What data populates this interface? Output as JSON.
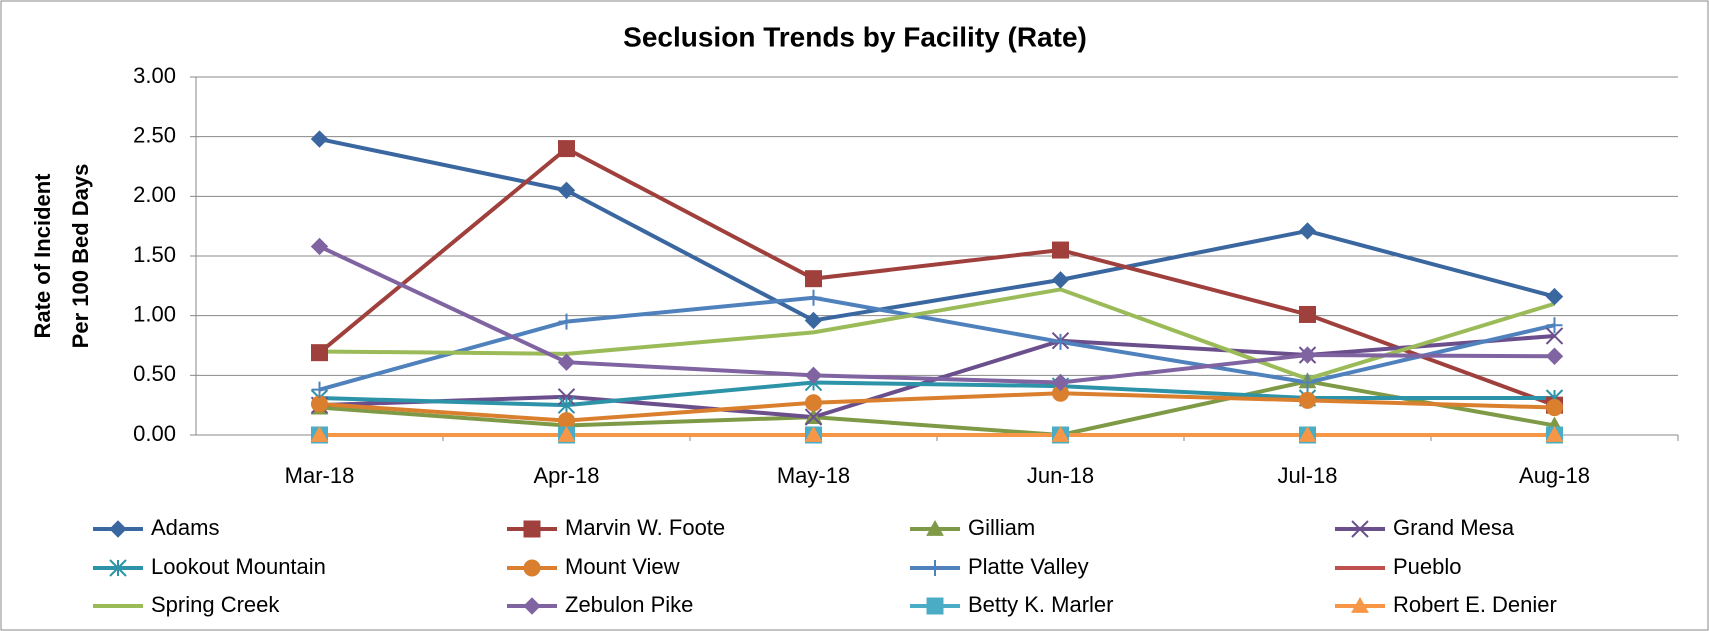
{
  "chart_data": {
    "type": "line",
    "title": "Seclusion Trends by Facility (Rate)",
    "y_label": [
      "Rate of Incident",
      "Per 100 Bed Days"
    ],
    "categories": [
      "Mar-18",
      "Apr-18",
      "May-18",
      "Jun-18",
      "Jul-18",
      "Aug-18"
    ],
    "ylim": [
      0,
      3
    ],
    "yticks": [
      {
        "value": 0,
        "label": "0.00"
      },
      {
        "value": 0.5,
        "label": "0.50"
      },
      {
        "value": 1,
        "label": "1.00"
      },
      {
        "value": 1.5,
        "label": "1.50"
      },
      {
        "value": 2,
        "label": "2.00"
      },
      {
        "value": 2.5,
        "label": "2.50"
      },
      {
        "value": 3,
        "label": "3.00"
      }
    ],
    "grid": true,
    "legend": "bottom",
    "series": [
      {
        "name": "Adams",
        "color": "#3a67a0",
        "marker": "diamond",
        "values": [
          2.48,
          2.05,
          0.96,
          1.3,
          1.71,
          1.16
        ]
      },
      {
        "name": "Marvin W. Foote",
        "color": "#a0403d",
        "marker": "square",
        "values": [
          0.69,
          2.4,
          1.31,
          1.55,
          1.01,
          0.25
        ]
      },
      {
        "name": "Gilliam",
        "color": "#7e9a47",
        "marker": "triangle",
        "values": [
          0.23,
          0.08,
          0.15,
          0,
          0.45,
          0.08
        ]
      },
      {
        "name": "Grand Mesa",
        "color": "#6b4e8c",
        "marker": "x",
        "values": [
          0.25,
          0.32,
          0.15,
          0.79,
          0.67,
          0.83
        ]
      },
      {
        "name": "Lookout Mountain",
        "color": "#2d93a8",
        "marker": "star",
        "values": [
          0.31,
          0.25,
          0.44,
          0.41,
          0.31,
          0.31
        ]
      },
      {
        "name": "Mount View",
        "color": "#d97f2e",
        "marker": "circle",
        "values": [
          0.26,
          0.12,
          0.27,
          0.35,
          0.29,
          0.23
        ]
      },
      {
        "name": "Platte Valley",
        "color": "#4f81bd",
        "marker": "plus",
        "values": [
          0.38,
          0.95,
          1.15,
          0.78,
          0.44,
          0.92
        ]
      },
      {
        "name": "Pueblo",
        "color": "#c0504d",
        "marker": "none",
        "values": [
          0,
          0,
          0,
          0,
          0,
          0
        ]
      },
      {
        "name": "Spring Creek",
        "color": "#9bbb59",
        "marker": "none",
        "values": [
          0.7,
          0.68,
          0.86,
          1.22,
          0.47,
          1.1
        ]
      },
      {
        "name": "Zebulon Pike",
        "color": "#8064a2",
        "marker": "diamond",
        "values": [
          1.58,
          0.61,
          0.5,
          0.44,
          0.67,
          0.66
        ]
      },
      {
        "name": "Betty K. Marler",
        "color": "#4bacc6",
        "marker": "square",
        "values": [
          0,
          0,
          0,
          0,
          0,
          0
        ]
      },
      {
        "name": "Robert E. Denier",
        "color": "#f79646",
        "marker": "triangle",
        "values": [
          0,
          0,
          0,
          0,
          0,
          0
        ]
      }
    ]
  }
}
